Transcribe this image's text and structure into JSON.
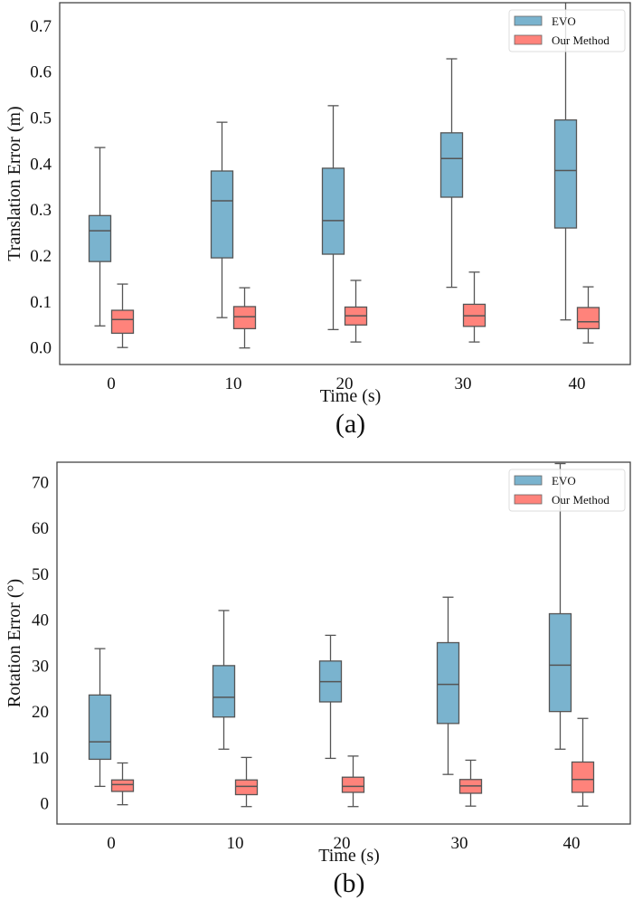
{
  "colors": {
    "evo": "#7AB3CE",
    "ours": "#FF837B",
    "edge": "#555555"
  },
  "chart_data": [
    {
      "type": "box",
      "panel_label": "(a)",
      "title": "",
      "xlabel": "Time (s)",
      "ylabel": "Translation Error (m)",
      "categories": [
        "0",
        "10",
        "20",
        "30",
        "40"
      ],
      "yticks": [
        "0.0",
        "0.1",
        "0.2",
        "0.3",
        "0.4",
        "0.5",
        "0.6",
        "0.7"
      ],
      "ytick_values": [
        0.0,
        0.1,
        0.2,
        0.3,
        0.4,
        0.5,
        0.6,
        0.7
      ],
      "ylim": [
        -0.037,
        0.75
      ],
      "grid": false,
      "legend": {
        "position": "top-right",
        "entries": [
          "EVO",
          "Our Method"
        ]
      },
      "series": [
        {
          "name": "EVO",
          "boxes": [
            {
              "whislo": 0.047,
              "q1": 0.187,
              "med": 0.254,
              "q3": 0.287,
              "whishi": 0.435
            },
            {
              "whislo": 0.065,
              "q1": 0.195,
              "med": 0.319,
              "q3": 0.384,
              "whishi": 0.49
            },
            {
              "whislo": 0.039,
              "q1": 0.203,
              "med": 0.276,
              "q3": 0.39,
              "whishi": 0.526
            },
            {
              "whislo": 0.131,
              "q1": 0.327,
              "med": 0.411,
              "q3": 0.467,
              "whishi": 0.628
            },
            {
              "whislo": 0.06,
              "q1": 0.26,
              "med": 0.385,
              "q3": 0.495,
              "whishi": 0.76
            }
          ]
        },
        {
          "name": "Our Method",
          "boxes": [
            {
              "whislo": 0.0,
              "q1": 0.031,
              "med": 0.061,
              "q3": 0.081,
              "whishi": 0.138
            },
            {
              "whislo": -0.001,
              "q1": 0.041,
              "med": 0.067,
              "q3": 0.089,
              "whishi": 0.13
            },
            {
              "whislo": 0.012,
              "q1": 0.049,
              "med": 0.069,
              "q3": 0.088,
              "whishi": 0.146
            },
            {
              "whislo": 0.012,
              "q1": 0.046,
              "med": 0.069,
              "q3": 0.094,
              "whishi": 0.164
            },
            {
              "whislo": 0.01,
              "q1": 0.041,
              "med": 0.056,
              "q3": 0.087,
              "whishi": 0.132
            }
          ]
        }
      ]
    },
    {
      "type": "box",
      "panel_label": "(b)",
      "title": "",
      "xlabel": "Time (s)",
      "ylabel": "Rotation Error (°)",
      "categories": [
        "0",
        "10",
        "20",
        "30",
        "40"
      ],
      "yticks": [
        "0",
        "10",
        "20",
        "30",
        "40",
        "50",
        "60",
        "70"
      ],
      "ytick_values": [
        0,
        10,
        20,
        30,
        40,
        50,
        60,
        70
      ],
      "ylim": [
        -4.5,
        74.3
      ],
      "grid": false,
      "legend": {
        "position": "top-right",
        "entries": [
          "EVO",
          "Our Method"
        ]
      },
      "series": [
        {
          "name": "EVO",
          "boxes": [
            {
              "whislo": 3.7,
              "q1": 9.6,
              "med": 13.4,
              "q3": 23.6,
              "whishi": 33.7
            },
            {
              "whislo": 11.8,
              "q1": 18.8,
              "med": 23.1,
              "q3": 30.0,
              "whishi": 42.0
            },
            {
              "whislo": 9.8,
              "q1": 22.1,
              "med": 26.5,
              "q3": 31.0,
              "whishi": 36.6
            },
            {
              "whislo": 6.3,
              "q1": 17.4,
              "med": 25.9,
              "q3": 35.0,
              "whishi": 44.9
            },
            {
              "whislo": 11.8,
              "q1": 20.0,
              "med": 30.1,
              "q3": 41.3,
              "whishi": 74.0
            }
          ]
        },
        {
          "name": "Our Method",
          "boxes": [
            {
              "whislo": -0.3,
              "q1": 2.6,
              "med": 4.1,
              "q3": 5.1,
              "whishi": 8.8
            },
            {
              "whislo": -0.7,
              "q1": 1.9,
              "med": 3.7,
              "q3": 5.1,
              "whishi": 10.0
            },
            {
              "whislo": -0.7,
              "q1": 2.4,
              "med": 3.7,
              "q3": 5.7,
              "whishi": 10.3
            },
            {
              "whislo": -0.6,
              "q1": 2.2,
              "med": 3.8,
              "q3": 5.2,
              "whishi": 9.4
            },
            {
              "whislo": -0.6,
              "q1": 2.4,
              "med": 5.2,
              "q3": 9.0,
              "whishi": 18.5
            }
          ]
        }
      ]
    }
  ]
}
